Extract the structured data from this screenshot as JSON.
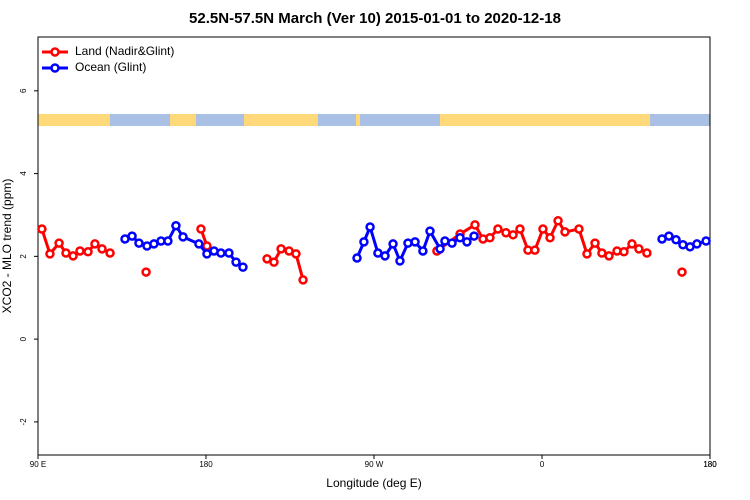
{
  "chart_data": {
    "type": "line",
    "title": "52.5N-57.5N March (Ver 10)   2015-01-01 to 2020-12-18",
    "x_label": "Longitude (deg E)",
    "y_label": "XCO2 - MLO trend (ppm)",
    "xlim": [
      90,
      450
    ],
    "ylim": [
      -2.8,
      7.3
    ],
    "xticks": [
      {
        "value": 90,
        "label": "90 E"
      },
      180,
      {
        "value": 270,
        "label": "90 W"
      },
      {
        "value": 360,
        "label": "0"
      },
      {
        "value": 450,
        "label": "180"
      },
      {
        "value": 450,
        "label": "180"
      }
    ],
    "yticks": [
      -2,
      0,
      2,
      4,
      6
    ],
    "legend": "top-left",
    "series": [
      {
        "name": "Land (Nadir&Glint)",
        "color": "#ff0000",
        "x": [
          92.1,
          96.4,
          101.3,
          105.0,
          108.8,
          112.5,
          116.8,
          120.5,
          124.3,
          128.6,
          null,
          147.9,
          null,
          177.3,
          180.5,
          null,
          212.7,
          216.4,
          220.2,
          224.5,
          228.2,
          232.0,
          null,
          303.7,
          316.1,
          324.1,
          328.4,
          332.1,
          336.4,
          340.7,
          344.5,
          348.2,
          352.5,
          356.2,
          360.5,
          364.3,
          368.6,
          372.3,
          379.8,
          384.1,
          388.4,
          392.1,
          395.9,
          400.2,
          403.9,
          408.2,
          411.9,
          416.2,
          null,
          435.0
        ],
        "values": [
          2.66,
          2.06,
          2.32,
          2.08,
          2.01,
          2.13,
          2.11,
          2.3,
          2.18,
          2.08,
          null,
          1.62,
          null,
          2.66,
          2.25,
          null,
          1.94,
          1.86,
          2.18,
          2.13,
          2.06,
          1.43,
          null,
          2.13,
          2.54,
          2.76,
          2.42,
          2.45,
          2.66,
          2.57,
          2.52,
          2.66,
          2.15,
          2.15,
          2.66,
          2.45,
          2.86,
          2.59,
          2.66,
          2.06,
          2.32,
          2.08,
          2.01,
          2.13,
          2.11,
          2.3,
          2.18,
          2.08,
          null,
          1.62
        ]
      },
      {
        "name": "Ocean (Glint)",
        "color": "#0000ff",
        "x": [
          136.6,
          140.4,
          144.1,
          148.4,
          152.1,
          155.9,
          159.6,
          163.9,
          167.7,
          176.2,
          180.5,
          184.3,
          188.0,
          192.3,
          196.1,
          199.8,
          null,
          260.9,
          264.6,
          267.9,
          272.1,
          275.9,
          280.2,
          283.9,
          288.2,
          292.0,
          296.2,
          300.0,
          305.4,
          308.0,
          311.8,
          316.1,
          319.8,
          323.6,
          null,
          424.3,
          428.0,
          431.8,
          435.5,
          439.3,
          443.0,
          447.9
        ],
        "values": [
          2.42,
          2.49,
          2.32,
          2.25,
          2.3,
          2.37,
          2.37,
          2.74,
          2.47,
          2.3,
          2.06,
          2.13,
          2.08,
          2.08,
          1.86,
          1.74,
          null,
          1.96,
          2.35,
          2.71,
          2.08,
          2.01,
          2.3,
          1.89,
          2.32,
          2.35,
          2.13,
          2.61,
          2.18,
          2.37,
          2.32,
          2.45,
          2.35,
          2.49,
          null,
          2.42,
          2.49,
          2.4,
          2.28,
          2.23,
          2.3,
          2.37
        ]
      }
    ]
  }
}
